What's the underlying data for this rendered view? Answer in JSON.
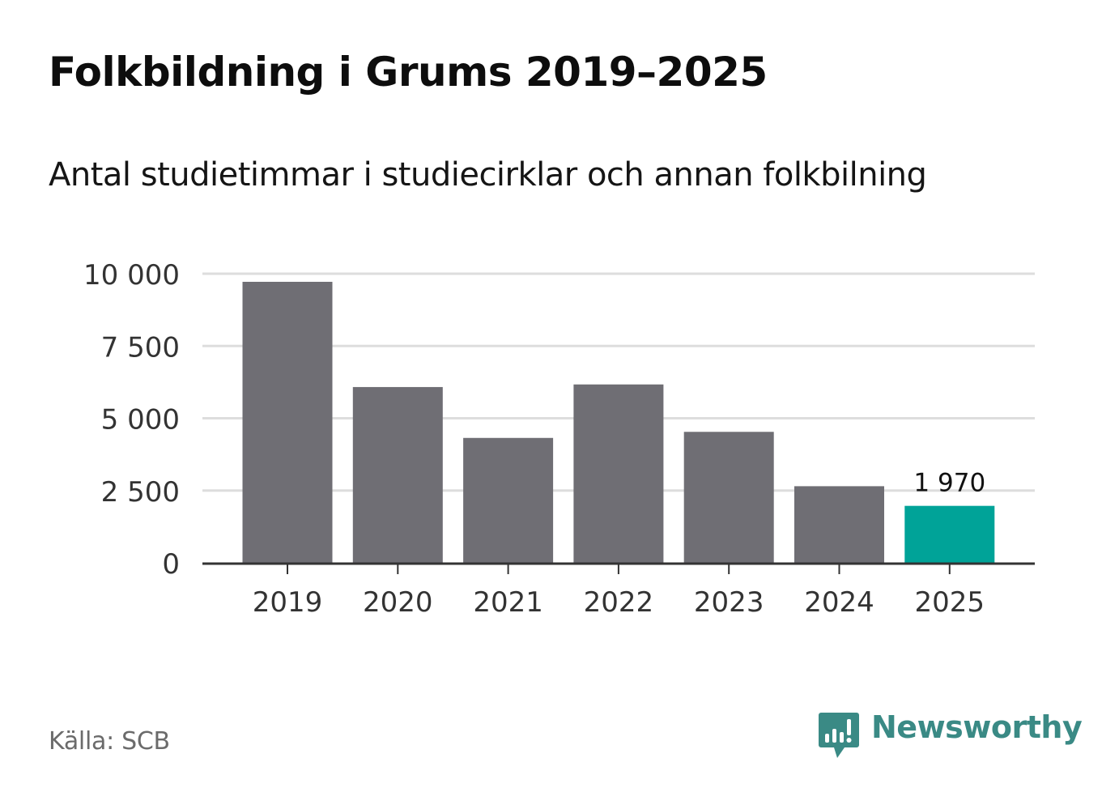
{
  "header": {
    "title": "Folkbildning i Grums 2019–2025",
    "subtitle": "Antal studietimmar i studiecirklar och annan folkbilning"
  },
  "footer": {
    "source": "Källa: SCB",
    "brand_name": "Newsworthy",
    "brand_icon": "newsworthy-logo-icon"
  },
  "colors": {
    "bar_default": "#6f6e74",
    "bar_highlight": "#00a398",
    "grid": "#dddddd",
    "axis": "#333333",
    "brand": "#3a8a85"
  },
  "chart_data": {
    "type": "bar",
    "title": "Folkbildning i Grums 2019–2025",
    "subtitle": "Antal studietimmar i studiecirklar och annan folkbilning",
    "categories": [
      "2019",
      "2020",
      "2021",
      "2022",
      "2023",
      "2024",
      "2025"
    ],
    "values": [
      9720,
      6080,
      4320,
      6170,
      4530,
      2650,
      1970
    ],
    "highlight_index": 6,
    "data_labels": [
      {
        "index": 6,
        "text": "1 970"
      }
    ],
    "ylim": [
      0,
      10000
    ],
    "yticks": [
      0,
      2500,
      5000,
      7500,
      10000
    ],
    "ytick_labels": [
      "0",
      "2 500",
      "5 000",
      "7 500",
      "10 000"
    ],
    "xlabel": "",
    "ylabel": "",
    "grid": true
  }
}
